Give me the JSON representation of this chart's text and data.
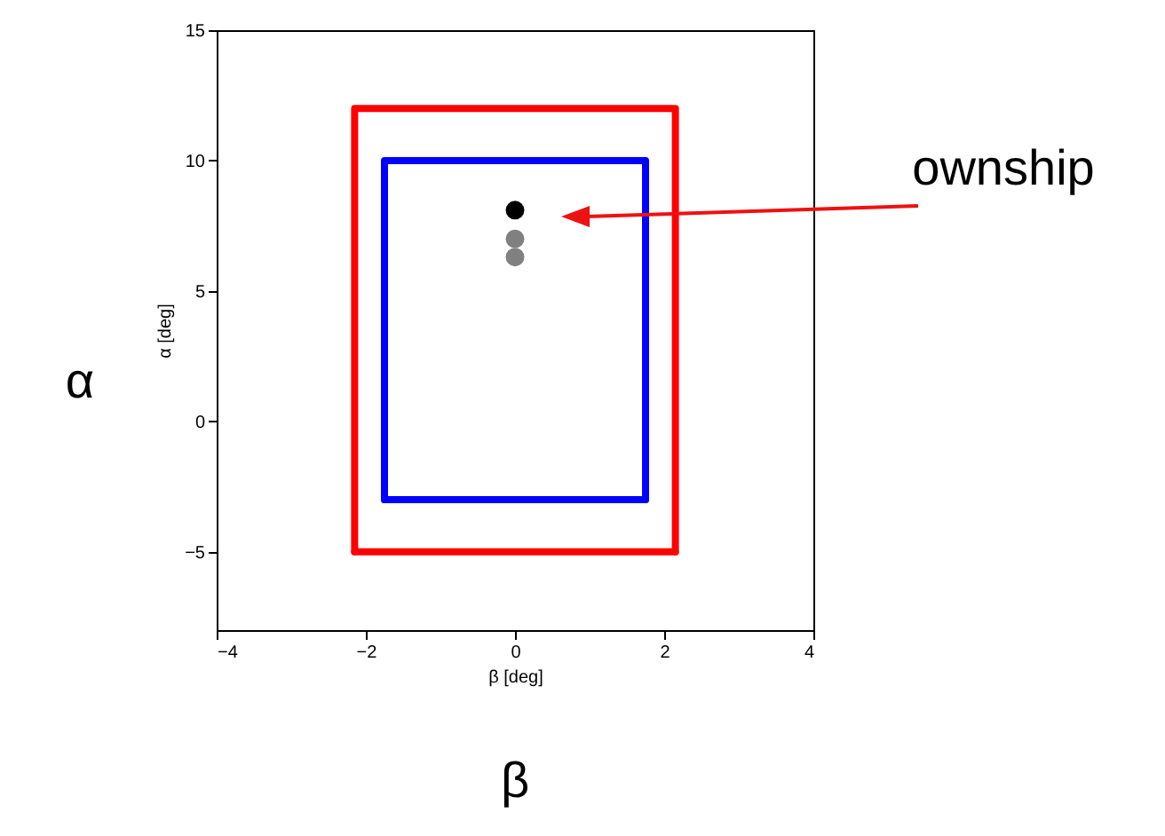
{
  "chart_data": {
    "type": "line",
    "xlabel": "β [deg]",
    "ylabel": "α [deg]",
    "xlim": [
      -4,
      4
    ],
    "xticks": [
      -4,
      -2,
      0,
      2,
      4
    ],
    "ylim": [
      -8,
      15
    ],
    "yticks": [
      -5,
      0,
      5,
      10,
      15
    ],
    "grid": false,
    "series": [
      {
        "color": "#ff0000",
        "x": [
          -2.15,
          -2.15,
          2.15,
          2.15
        ],
        "values": [
          -5,
          12,
          12,
          -5
        ]
      },
      {
        "color": "#ff0000",
        "x": [
          -2.15,
          2.15
        ],
        "values": [
          -5,
          -5
        ]
      },
      {
        "color": "#0000ff",
        "x": [
          -1.75,
          -1.75,
          1.75,
          1.75
        ],
        "values": [
          -3,
          10,
          10,
          -3
        ]
      },
      {
        "color": "#0000ff",
        "x": [
          -1.75,
          1.75
        ],
        "values": [
          -3,
          -3
        ]
      },
      {
        "type": "scatter",
        "color": "#000000",
        "marker": "circle",
        "x": [
          0
        ],
        "values": [
          8.1
        ]
      },
      {
        "type": "scatter",
        "color": "#808080",
        "marker": "circle",
        "x": [
          0,
          0
        ],
        "values": [
          7.0,
          6.3
        ]
      }
    ],
    "annotations": [
      "ownship",
      "α",
      "β"
    ]
  }
}
